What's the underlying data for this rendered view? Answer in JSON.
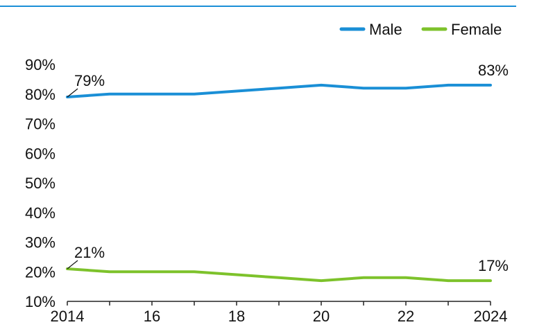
{
  "chart_data": {
    "type": "line",
    "title": "",
    "xlabel": "",
    "ylabel": "",
    "x": [
      2014,
      2015,
      2016,
      2017,
      2018,
      2019,
      2020,
      2021,
      2022,
      2023,
      2024
    ],
    "x_ticks": [
      2014,
      2016,
      2018,
      2020,
      2022,
      2024
    ],
    "x_tick_labels": [
      "2014",
      "16",
      "18",
      "20",
      "22",
      "2024"
    ],
    "ylim": [
      10,
      90
    ],
    "y_ticks": [
      10,
      20,
      30,
      40,
      50,
      60,
      70,
      80,
      90
    ],
    "y_tick_labels": [
      "10%",
      "20%",
      "30%",
      "40%",
      "50%",
      "60%",
      "70%",
      "80%",
      "90%"
    ],
    "grid": false,
    "legend_position": "top-right",
    "series": [
      {
        "name": "Male",
        "color": "#1a8fd6",
        "values": [
          79,
          80,
          80,
          80,
          81,
          82,
          83,
          82,
          82,
          83,
          83
        ],
        "start_label": "79%",
        "end_label": "83%"
      },
      {
        "name": "Female",
        "color": "#7dc22b",
        "values": [
          21,
          20,
          20,
          20,
          19,
          18,
          17,
          18,
          18,
          17,
          17
        ],
        "start_label": "21%",
        "end_label": "17%"
      }
    ]
  }
}
